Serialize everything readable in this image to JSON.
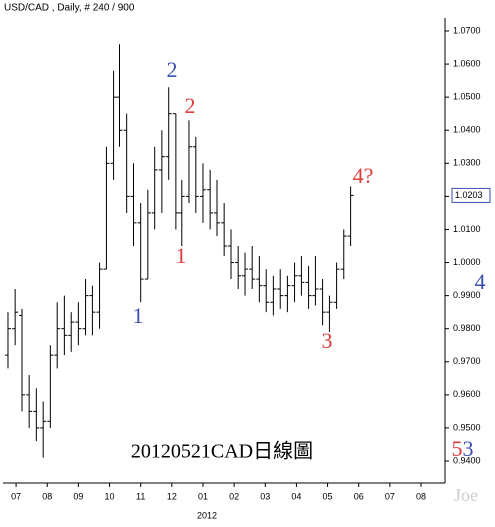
{
  "chart_data": {
    "type": "ohlc",
    "title": "USD/CAD , Daily, # 240 / 900",
    "caption": "20120521CAD日線圖",
    "year_label": "2012",
    "watermark": "Joe",
    "color": "#000000",
    "x": [
      -0.26,
      -0.03,
      0.19,
      0.42,
      0.65,
      0.87,
      1.1,
      1.32,
      1.55,
      1.77,
      2.0,
      2.23,
      2.45,
      2.68,
      2.9,
      3.13,
      3.32,
      3.55,
      3.77,
      4.0,
      4.23,
      4.45,
      4.68,
      4.9,
      5.13,
      5.32,
      5.55,
      5.77,
      6.0,
      6.23,
      6.45,
      6.68,
      6.9,
      7.13,
      7.35,
      7.58,
      7.81,
      8.03,
      8.26,
      8.48,
      8.71,
      8.94,
      9.16,
      9.39,
      9.61,
      9.84,
      10.06,
      10.29,
      10.52,
      10.74
    ],
    "open": [
      0.972,
      0.98,
      0.984,
      0.96,
      0.955,
      0.95,
      0.952,
      0.972,
      0.98,
      0.978,
      0.982,
      0.98,
      0.99,
      0.985,
      0.998,
      1.03,
      1.05,
      1.04,
      1.02,
      1.012,
      0.995,
      1.015,
      1.028,
      1.032,
      1.045,
      1.015,
      1.02,
      1.035,
      1.02,
      1.022,
      1.015,
      1.012,
      1.005,
      1.0,
      0.996,
      0.998,
      0.995,
      0.993,
      0.988,
      0.992,
      0.99,
      0.993,
      0.996,
      0.994,
      0.99,
      0.992,
      0.985,
      0.988,
      0.998,
      1.008
    ],
    "high": [
      0.985,
      0.992,
      0.986,
      0.966,
      0.962,
      0.958,
      0.975,
      0.988,
      0.99,
      0.985,
      0.988,
      0.995,
      0.993,
      1.0,
      1.035,
      1.058,
      1.066,
      1.045,
      1.03,
      1.018,
      1.022,
      1.035,
      1.04,
      1.053,
      1.045,
      1.025,
      1.043,
      1.038,
      1.03,
      1.028,
      1.025,
      1.018,
      1.01,
      1.005,
      1.003,
      1.005,
      1.002,
      0.998,
      0.996,
      0.998,
      0.996,
      1.0,
      1.002,
      0.999,
      1.002,
      0.995,
      0.99,
      1.0,
      1.01,
      1.023
    ],
    "low": [
      0.968,
      0.975,
      0.955,
      0.95,
      0.946,
      0.941,
      0.95,
      0.968,
      0.972,
      0.973,
      0.975,
      0.978,
      0.978,
      0.98,
      0.998,
      1.025,
      1.035,
      1.015,
      1.005,
      0.988,
      0.995,
      1.01,
      1.015,
      1.025,
      1.01,
      1.005,
      1.018,
      1.015,
      1.012,
      1.01,
      1.008,
      1.002,
      0.995,
      0.992,
      0.99,
      0.992,
      0.988,
      0.985,
      0.984,
      0.986,
      0.985,
      0.988,
      0.99,
      0.986,
      0.987,
      0.981,
      0.979,
      0.986,
      0.995,
      1.005
    ],
    "close": [
      0.98,
      0.985,
      0.96,
      0.955,
      0.95,
      0.952,
      0.972,
      0.98,
      0.978,
      0.982,
      0.98,
      0.99,
      0.985,
      0.998,
      1.03,
      1.05,
      1.04,
      1.02,
      1.012,
      0.995,
      1.015,
      1.028,
      1.032,
      1.045,
      1.015,
      1.02,
      1.035,
      1.02,
      1.022,
      1.015,
      1.012,
      1.005,
      1.0,
      0.996,
      0.998,
      0.995,
      0.993,
      0.988,
      0.992,
      0.99,
      0.993,
      0.996,
      0.994,
      0.99,
      0.992,
      0.985,
      0.988,
      0.998,
      1.008,
      1.0203
    ],
    "last_label": "1.0203",
    "xlim": [
      -0.42,
      13.77
    ],
    "xticks": [
      {
        "value": 0,
        "label": "07"
      },
      {
        "value": 1,
        "label": "08"
      },
      {
        "value": 2,
        "label": "09"
      },
      {
        "value": 3,
        "label": "10"
      },
      {
        "value": 4,
        "label": "11"
      },
      {
        "value": 5,
        "label": "12"
      },
      {
        "value": 6,
        "label": "01"
      },
      {
        "value": 7,
        "label": "02"
      },
      {
        "value": 8,
        "label": "03"
      },
      {
        "value": 9,
        "label": "04"
      },
      {
        "value": 10,
        "label": "05"
      },
      {
        "value": 11,
        "label": "06"
      },
      {
        "value": 12,
        "label": "07"
      },
      {
        "value": 13,
        "label": "08"
      }
    ],
    "ylim": [
      0.94,
      1.07
    ],
    "yticks": [
      {
        "value": 0.94,
        "label": "0.9400"
      },
      {
        "value": 0.95,
        "label": "0.9500"
      },
      {
        "value": 0.96,
        "label": "0.9600"
      },
      {
        "value": 0.97,
        "label": "0.9700"
      },
      {
        "value": 0.98,
        "label": "0.9800"
      },
      {
        "value": 0.99,
        "label": "0.9900"
      },
      {
        "value": 1.0,
        "label": "1.0000"
      },
      {
        "value": 1.01,
        "label": "1.0100"
      },
      {
        "value": 1.02,
        "label": "1.0200"
      },
      {
        "value": 1.03,
        "label": "1.0300"
      },
      {
        "value": 1.04,
        "label": "1.0400"
      },
      {
        "value": 1.05,
        "label": "1.0500"
      },
      {
        "value": 1.06,
        "label": "1.0600"
      },
      {
        "value": 1.07,
        "label": "1.0700"
      }
    ],
    "annotations": [
      {
        "text": "2",
        "color": "#3a4fb0"
      },
      {
        "text": "1",
        "color": "#3a4fb0"
      },
      {
        "text": "2",
        "color": "#e03c3c"
      },
      {
        "text": "1",
        "color": "#e03c3c"
      },
      {
        "text": "3",
        "color": "#e03c3c"
      },
      {
        "text": "4?",
        "color": "#e03c3c"
      },
      {
        "text": "4",
        "color": "#3a4fb0"
      },
      {
        "text": "5",
        "color": "#e03c3c"
      },
      {
        "text": "3",
        "color": "#3a4fb0"
      }
    ]
  }
}
